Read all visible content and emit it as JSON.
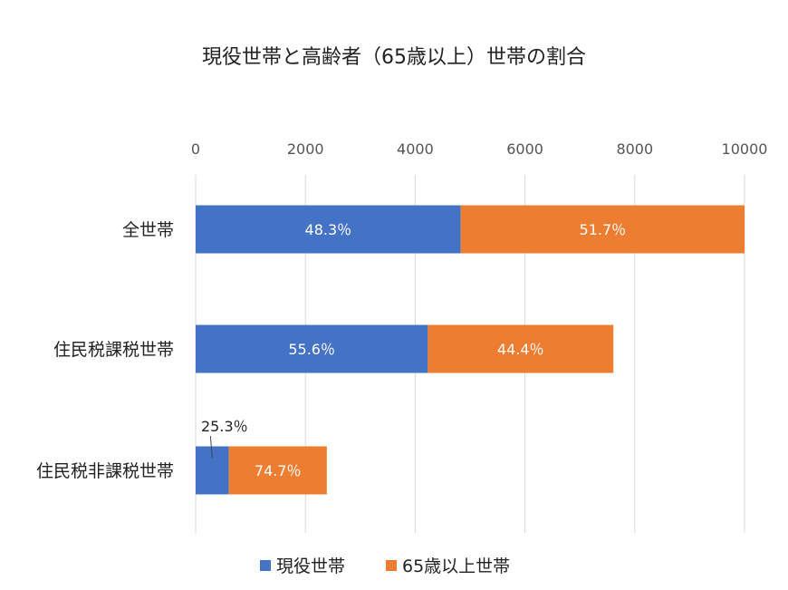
{
  "chart_data": {
    "type": "bar",
    "orientation": "horizontal",
    "stacked": true,
    "title": "現役世帯と高齢者（65歳以上）世帯の割合",
    "categories": [
      "全世帯",
      "住民税課税世帯",
      "住民税非課税世帯"
    ],
    "xlim": [
      0,
      10000
    ],
    "xticks": [
      0,
      2000,
      4000,
      6000,
      8000,
      10000
    ],
    "grid": true,
    "legend_position": "bottom",
    "series": [
      {
        "name": "現役世帯",
        "color": "#4472C4",
        "values": [
          4830,
          4230,
          605
        ],
        "labels": [
          "48.3％",
          "55.6％",
          "25.3％"
        ]
      },
      {
        "name": "65歳以上世帯",
        "color": "#ED7D31",
        "values": [
          5170,
          3380,
          1785
        ],
        "labels": [
          "51.7％",
          "44.4％",
          "74.7％"
        ]
      }
    ]
  }
}
